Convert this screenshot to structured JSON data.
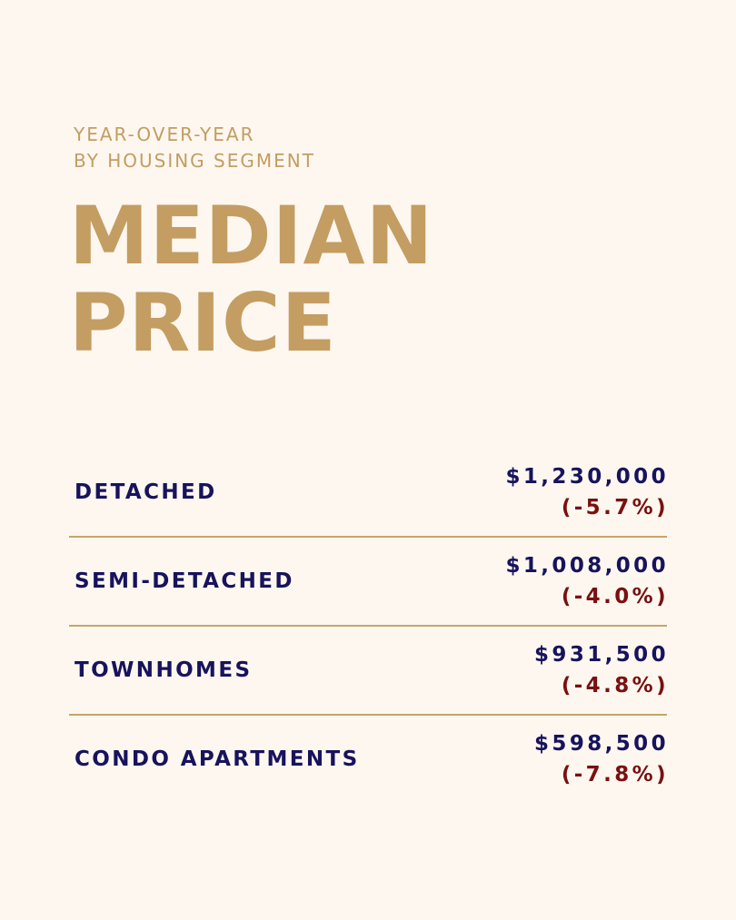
{
  "header": {
    "subtitle_line1": "YEAR-OVER-YEAR",
    "subtitle_line2": "BY HOUSING SEGMENT",
    "title_line1": "MEDIAN",
    "title_line2": "PRICE"
  },
  "segments": [
    {
      "label": "DETACHED",
      "price": "$1,230,000",
      "change": "(-5.7%)"
    },
    {
      "label": "SEMI-DETACHED",
      "price": "$1,008,000",
      "change": "(-4.0%)"
    },
    {
      "label": "TOWNHOMES",
      "price": "$931,500",
      "change": "(-4.8%)"
    },
    {
      "label": "CONDO APARTMENTS",
      "price": "$598,500",
      "change": "(-7.8%)"
    }
  ],
  "colors": {
    "background": "#fdf7ef",
    "gold": "#c39d62",
    "navy": "#17135c",
    "maroon": "#7a1010"
  }
}
